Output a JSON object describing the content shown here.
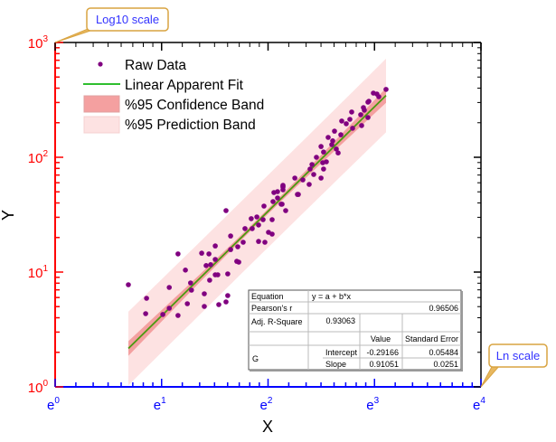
{
  "chart_data": {
    "type": "scatter",
    "xlabel": "X",
    "ylabel": "Y",
    "x_scale": "ln",
    "y_scale": "log10",
    "xlim": [
      1,
      54.598
    ],
    "ylim": [
      1,
      1000
    ],
    "x_ticks": [
      {
        "base": "e",
        "exp": "0"
      },
      {
        "base": "e",
        "exp": "1"
      },
      {
        "base": "e",
        "exp": "2"
      },
      {
        "base": "e",
        "exp": "3"
      },
      {
        "base": "e",
        "exp": "4"
      }
    ],
    "y_ticks": [
      {
        "base": "10",
        "exp": "0"
      },
      {
        "base": "10",
        "exp": "1"
      },
      {
        "base": "10",
        "exp": "2"
      },
      {
        "base": "10",
        "exp": "3"
      }
    ],
    "grid": false,
    "legend_placement": "top-left",
    "legend": {
      "raw": "Raw Data",
      "fit": "Linear Apparent Fit",
      "conf": "%95 Confidence Band",
      "pred": "%95 Prediction Band"
    },
    "colors": {
      "points": "#800080",
      "fit": "#2fbf2f",
      "fit_drawn": "#4a9a10",
      "confidence": "#f4a0a0",
      "prediction": "#fde2e2",
      "y_axis": "#ff0000",
      "x_axis": "#0000ff",
      "callout_border": "#d9a441",
      "callout_text": "#3333ff"
    },
    "fit": {
      "intercept": -0.29166,
      "slope": 0.91051,
      "x_range": [
        1.99,
        22.38
      ]
    },
    "raw_data": [
      [
        1.99,
        7.76
      ],
      [
        2.36,
        5.91
      ],
      [
        2.34,
        4.34
      ],
      [
        2.92,
        7.35
      ],
      [
        2.75,
        4.27
      ],
      [
        2.92,
        4.84
      ],
      [
        3.17,
        4.19
      ],
      [
        3.17,
        14.4
      ],
      [
        3.4,
        10.4
      ],
      [
        3.46,
        5.3
      ],
      [
        3.57,
        8.05
      ],
      [
        3.6,
        6.96
      ],
      [
        4.06,
        5.02
      ],
      [
        4.06,
        6.47
      ],
      [
        3.96,
        14.6
      ],
      [
        4.24,
        14.4
      ],
      [
        4.13,
        11.4
      ],
      [
        4.31,
        11.6
      ],
      [
        4.5,
        12.9
      ],
      [
        4.27,
        8.49
      ],
      [
        4.5,
        9.47
      ],
      [
        4.61,
        9.47
      ],
      [
        5.06,
        9.64
      ],
      [
        4.65,
        5.21
      ],
      [
        4.98,
        5.5
      ],
      [
        5.06,
        6.24
      ],
      [
        4.98,
        34.3
      ],
      [
        4.5,
        16.9
      ],
      [
        5.2,
        20.6
      ],
      [
        5.2,
        15.7
      ],
      [
        5.56,
        16.6
      ],
      [
        5.51,
        12.4
      ],
      [
        5.61,
        12.2
      ],
      [
        5.85,
        18.2
      ],
      [
        5.95,
        23.9
      ],
      [
        6.31,
        29.2
      ],
      [
        6.37,
        23.9
      ],
      [
        6.65,
        30.2
      ],
      [
        6.76,
        25.7
      ],
      [
        6.76,
        18.5
      ],
      [
        7.05,
        28.6
      ],
      [
        7.17,
        18.2
      ],
      [
        7.11,
        37.6
      ],
      [
        7.42,
        22.2
      ],
      [
        7.68,
        21.4
      ],
      [
        7.68,
        28.6
      ],
      [
        7.74,
        41.1
      ],
      [
        7.81,
        49.3
      ],
      [
        8.08,
        50.2
      ],
      [
        8.08,
        44.2
      ],
      [
        8.36,
        39.0
      ],
      [
        8.5,
        55.0
      ],
      [
        8.5,
        57.0
      ],
      [
        8.72,
        34.3
      ],
      [
        9.74,
        47.5
      ],
      [
        8.43,
        39.0
      ],
      [
        8.5,
        56.0
      ],
      [
        8.5,
        52.1
      ],
      [
        9.5,
        65.9
      ],
      [
        9.82,
        47.5
      ],
      [
        10.25,
        63.5
      ],
      [
        10.87,
        58.0
      ],
      [
        10.97,
        79.0
      ],
      [
        11.16,
        86.5
      ],
      [
        11.35,
        70.8
      ],
      [
        11.64,
        100
      ],
      [
        12.15,
        65.9
      ],
      [
        12.15,
        124
      ],
      [
        12.45,
        79.0
      ],
      [
        12.45,
        111
      ],
      [
        12.35,
        89.7
      ],
      [
        12.78,
        91.4
      ],
      [
        13.0,
        149
      ],
      [
        13.45,
        129
      ],
      [
        13.56,
        139
      ],
      [
        13.79,
        169
      ],
      [
        14.03,
        118
      ],
      [
        14.27,
        109
      ],
      [
        14.64,
        157
      ],
      [
        14.76,
        207
      ],
      [
        15.41,
        196
      ],
      [
        15.94,
        214
      ],
      [
        16.21,
        248
      ],
      [
        16.35,
        179
      ],
      [
        17.64,
        235
      ],
      [
        17.8,
        189
      ],
      [
        18.1,
        271
      ],
      [
        18.25,
        257
      ],
      [
        18.88,
        302
      ],
      [
        19.05,
        308
      ],
      [
        18.88,
        222
      ],
      [
        19.87,
        362
      ],
      [
        20.55,
        356
      ],
      [
        20.91,
        337
      ],
      [
        22.38,
        390
      ]
    ]
  },
  "stats_table": {
    "equation_label": "Equation",
    "equation": "y = a + b*x",
    "pearson_label": "Pearson's r",
    "pearson": "0.96506",
    "adj_r2_label": "Adj. R-Square",
    "adj_r2": "0.93063",
    "value_header": "Value",
    "se_header": "Standard Error",
    "group": "G",
    "intercept_label": "Intercept",
    "intercept_value": "-0.29166",
    "intercept_se": "0.05484",
    "slope_label": "Slope",
    "slope_value": "0.91051",
    "slope_se": "0.0251"
  },
  "callouts": {
    "y_scale": "Log10 scale",
    "x_scale": "Ln scale"
  }
}
